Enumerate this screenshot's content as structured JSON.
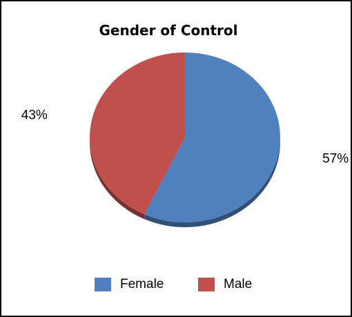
{
  "chart_data": {
    "type": "pie",
    "title": "Gender of Control",
    "categories": [
      "Female",
      "Male"
    ],
    "values": [
      57,
      43
    ],
    "data_labels": [
      "57%",
      "43%"
    ],
    "colors": [
      "#4F81BD",
      "#C0504D"
    ],
    "legend_position": "bottom"
  }
}
